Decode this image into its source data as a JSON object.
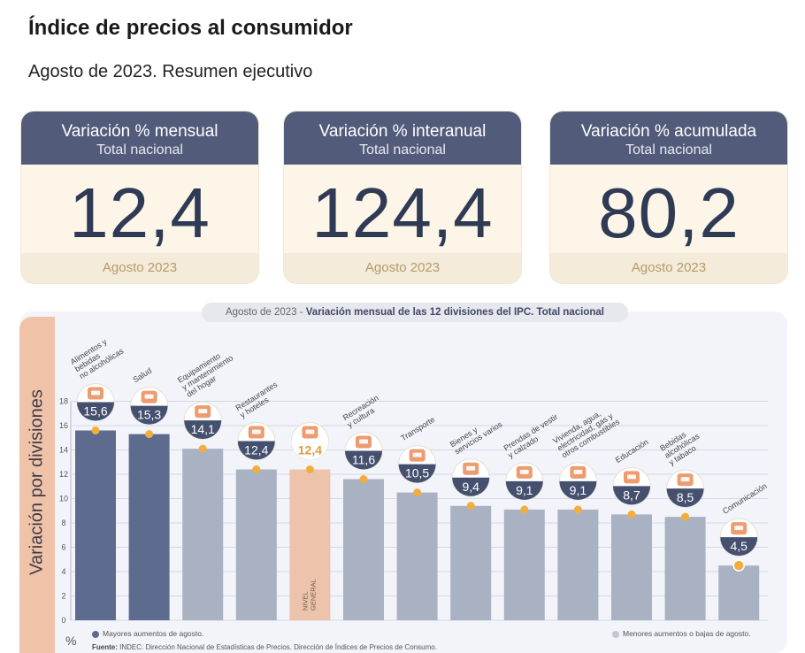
{
  "title": "Índice de precios al consumidor",
  "subtitle": "Agosto de 2023. Resumen ejecutivo",
  "cards": [
    {
      "head": "Variación % mensual",
      "sub": "Total nacional",
      "value": "12,4",
      "foot": "Agosto 2023"
    },
    {
      "head": "Variación % interanual",
      "sub": "Total nacional",
      "value": "124,4",
      "foot": "Agosto 2023"
    },
    {
      "head": "Variación % acumulada",
      "sub": "Total nacional",
      "value": "80,2",
      "foot": "Agosto 2023"
    }
  ],
  "panel": {
    "tag_prefix": "Agosto de 2023 - ",
    "tag_main": "Variación mensual de las 12 divisiones del IPC. Total nacional",
    "side_label": "Variación por divisiones",
    "unit": "%",
    "legend_high": "Mayores aumentos de agosto.",
    "legend_low": "Menores aumentos o bajas de agosto.",
    "source_label": "Fuente:",
    "source_text": "INDEC. Dirección Nacional de Estadísticas de Precios. Dirección de Índices de Precios de Consumo."
  },
  "colors": {
    "high": "#5d6b8e",
    "low": "#a9b2c3",
    "general": "#eec3ab",
    "badge": "#45506f",
    "dot": "#f2ad3f",
    "card_head": "#525c7a"
  },
  "chart_data": {
    "type": "bar",
    "title": "Variación mensual de las 12 divisiones del IPC. Total nacional",
    "ylabel": "Variación por divisiones",
    "ylim": [
      0,
      18
    ],
    "yticks": [
      0,
      2,
      4,
      6,
      8,
      10,
      12,
      14,
      16,
      18
    ],
    "grid": true,
    "categories": [
      "Alimentos y bebidas no alcohólicas",
      "Salud",
      "Equipamiento y mantenimiento del hogar",
      "Restaurantes y hoteles",
      "NIVEL GENERAL",
      "Recreación y cultura",
      "Transporte",
      "Bienes y servicios varios",
      "Prendas de vestir y calzado",
      "Vivienda, agua, electricidad, gas y otros combustibles",
      "Educación",
      "Bebidas alcohólicas y tabaco",
      "Comunicación"
    ],
    "category_lines": [
      [
        "Alimentos y",
        "bebidas",
        "no alcohólicas"
      ],
      [
        "Salud"
      ],
      [
        "Equipamiento",
        "y mantenimiento",
        "del hogar"
      ],
      [
        "Restaurantes",
        "y hoteles"
      ],
      [
        "NIVEL",
        "GENERAL"
      ],
      [
        "Recreación",
        "y cultura"
      ],
      [
        "Transporte"
      ],
      [
        "Bienes y",
        "servicios varios"
      ],
      [
        "Prendas de vestir",
        "y calzado"
      ],
      [
        "Vivienda, agua,",
        "electricidad, gas y",
        "otros combustibles"
      ],
      [
        "Educación"
      ],
      [
        "Bebidas",
        "alcohólicas",
        "y tabaco"
      ],
      [
        "Comunicación"
      ]
    ],
    "values": [
      15.6,
      15.3,
      14.1,
      12.4,
      12.4,
      11.6,
      10.5,
      9.4,
      9.1,
      9.1,
      8.7,
      8.5,
      4.5
    ],
    "labels": [
      "15,6",
      "15,3",
      "14,1",
      "12,4",
      "12,4",
      "11,6",
      "10,5",
      "9,4",
      "9,1",
      "9,1",
      "8,7",
      "8,5",
      "4,5"
    ],
    "groups": [
      "high",
      "high",
      "low",
      "low",
      "general",
      "low",
      "low",
      "low",
      "low",
      "low",
      "low",
      "low",
      "low"
    ],
    "icons": [
      "food-icon",
      "health-cross-icon",
      "oven-icon",
      "dining-icon",
      "shopping-basket-icon",
      "beach-icon",
      "bus-icon",
      "scissors-icon",
      "clothes-icon",
      "lightbulb-icon",
      "notebook-icon",
      "drinks-icon",
      "phone-icon"
    ]
  }
}
